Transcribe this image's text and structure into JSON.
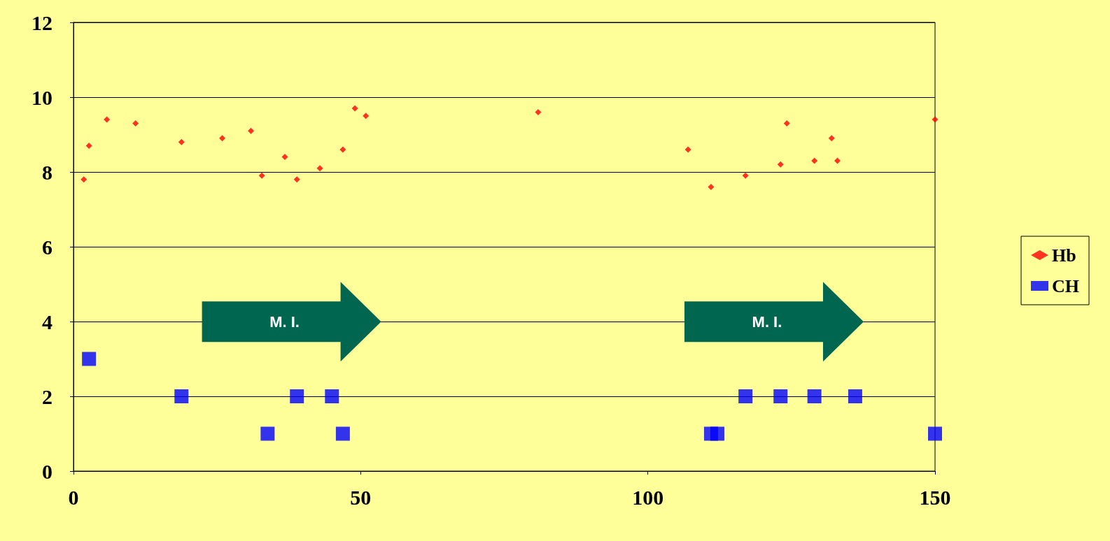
{
  "chart_data": {
    "type": "scatter",
    "series": [
      {
        "name": "Hb",
        "color": "#ff0000",
        "marker": "diamond",
        "x": [
          1.8,
          2.7,
          5.8,
          10.8,
          18.8,
          25.9,
          30.9,
          32.8,
          36.8,
          38.9,
          42.9,
          46.9,
          49,
          50.9,
          80.9,
          107,
          111,
          117,
          123.1,
          124.2,
          129,
          132,
          133,
          150
        ],
        "values": [
          7.8,
          8.7,
          9.4,
          9.3,
          8.8,
          8.9,
          9.1,
          7.9,
          8.4,
          7.8,
          8.1,
          8.6,
          9.7,
          9.5,
          9.6,
          8.6,
          7.6,
          7.9,
          8.2,
          9.3,
          8.3,
          8.9,
          8.3,
          9.4
        ]
      },
      {
        "name": "CH",
        "color": "#0000ff",
        "marker": "square",
        "x": [
          2.7,
          18.8,
          33.8,
          38.9,
          45,
          46.9,
          111,
          112.1,
          117,
          123.1,
          129,
          136.1,
          150
        ],
        "values": [
          3,
          2,
          1,
          2,
          2,
          1,
          1,
          1,
          2,
          2,
          2,
          2,
          1
        ]
      }
    ],
    "xlim": [
      0,
      150
    ],
    "xticks": [
      0,
      50,
      100,
      150
    ],
    "ylim": [
      0,
      12
    ],
    "yticks": [
      0,
      2,
      4,
      6,
      8,
      10,
      12
    ],
    "grid": "y",
    "legend": "right",
    "annotations": [
      "M. I.",
      "M. I."
    ]
  }
}
